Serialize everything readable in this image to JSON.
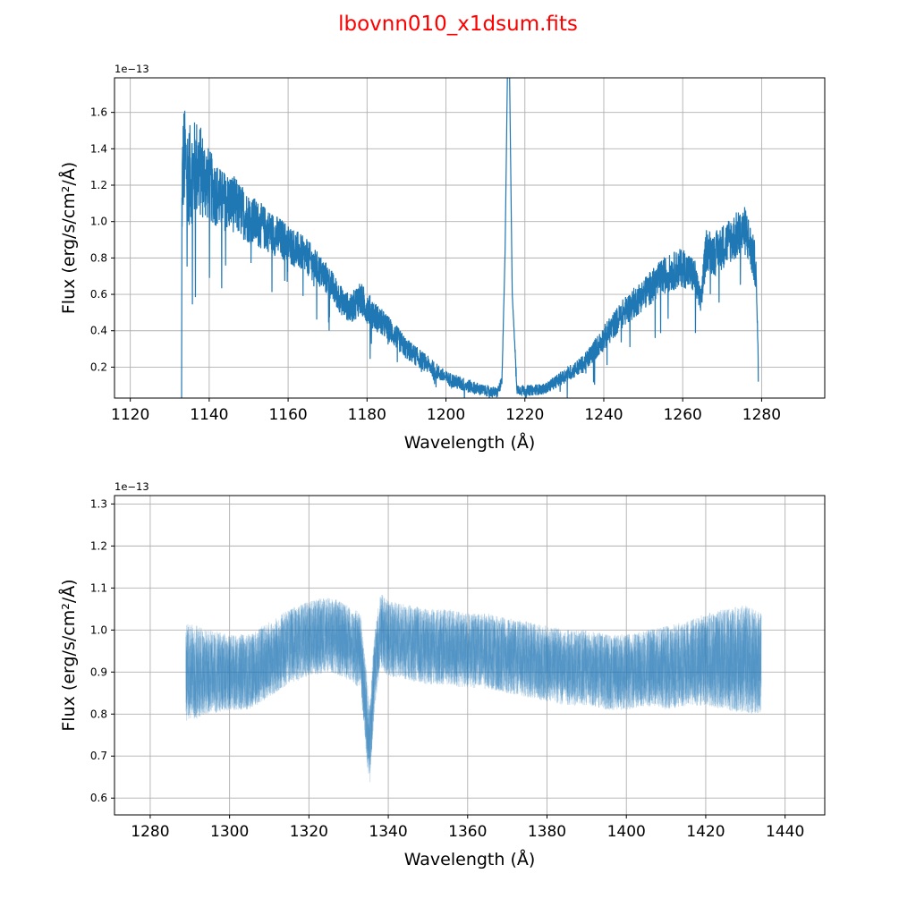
{
  "title": "lbovnn010_x1dsum.fits",
  "colors": {
    "title": "#ff0000",
    "line": "#1f77b4",
    "grid": "#b0b0b0"
  },
  "chart_data": [
    {
      "type": "line",
      "xlabel": "Wavelength (Å)",
      "ylabel": "Flux (erg/s/cm²/Å)",
      "offset_label": "1e−13",
      "xlim": [
        1116,
        1296
      ],
      "ylim": [
        0.03,
        1.79
      ],
      "xticks": [
        1120,
        1140,
        1160,
        1180,
        1200,
        1220,
        1240,
        1260,
        1280
      ],
      "yticks": [
        0.2,
        0.4,
        0.6,
        0.8,
        1.0,
        1.2,
        1.4,
        1.6
      ],
      "ytick_labels": [
        "0.2",
        "0.4",
        "0.6",
        "0.8",
        "1.0",
        "1.2",
        "1.4",
        "1.6"
      ],
      "grid": true,
      "series": [
        {
          "x": [
            1133,
            1133.1,
            1133.5,
            1135,
            1137,
            1140,
            1143,
            1146,
            1150,
            1155,
            1160,
            1165,
            1170,
            1174,
            1176,
            1178,
            1182,
            1186,
            1190,
            1195,
            1200,
            1205,
            1210,
            1213,
            1214.2,
            1215,
            1215.6,
            1216.1,
            1216.8,
            1218,
            1220,
            1225,
            1230,
            1235,
            1240,
            1245,
            1250,
            1255,
            1260,
            1263,
            1264.5,
            1266,
            1268,
            1272,
            1276,
            1278.5,
            1279.1,
            1279.2
          ],
          "values": [
            0.0,
            1.15,
            1.35,
            1.25,
            1.3,
            1.2,
            1.12,
            1.1,
            1.02,
            0.95,
            0.88,
            0.8,
            0.68,
            0.55,
            0.52,
            0.58,
            0.48,
            0.4,
            0.3,
            0.22,
            0.14,
            0.1,
            0.07,
            0.06,
            0.12,
            0.85,
            1.85,
            1.85,
            0.6,
            0.08,
            0.07,
            0.08,
            0.15,
            0.22,
            0.36,
            0.5,
            0.6,
            0.7,
            0.75,
            0.7,
            0.55,
            0.85,
            0.82,
            0.9,
            0.95,
            0.75,
            0.3,
            0.0
          ],
          "noise": [
            0.0,
            0.3,
            0.3,
            0.28,
            0.28,
            0.2,
            0.17,
            0.16,
            0.14,
            0.12,
            0.11,
            0.1,
            0.09,
            0.08,
            0.08,
            0.1,
            0.08,
            0.07,
            0.06,
            0.05,
            0.04,
            0.04,
            0.03,
            0.03,
            0.03,
            0.0,
            0.0,
            0.0,
            0.0,
            0.03,
            0.03,
            0.03,
            0.04,
            0.05,
            0.07,
            0.08,
            0.09,
            0.1,
            0.11,
            0.1,
            0.08,
            0.12,
            0.12,
            0.13,
            0.14,
            0.12,
            0.0,
            0.0
          ]
        }
      ]
    },
    {
      "type": "line",
      "xlabel": "Wavelength (Å)",
      "ylabel": "Flux (erg/s/cm²/Å)",
      "offset_label": "1e−13",
      "xlim": [
        1271,
        1450
      ],
      "ylim": [
        0.56,
        1.32
      ],
      "xticks": [
        1280,
        1300,
        1320,
        1340,
        1360,
        1380,
        1400,
        1420,
        1440
      ],
      "yticks": [
        0.6,
        0.7,
        0.8,
        0.9,
        1.0,
        1.1,
        1.2,
        1.3
      ],
      "ytick_labels": [
        "0.6",
        "0.7",
        "0.8",
        "0.9",
        "1.0",
        "1.1",
        "1.2",
        "1.3"
      ],
      "grid": true,
      "series": [
        {
          "x": [
            1289,
            1295,
            1300,
            1305,
            1310,
            1315,
            1320,
            1325,
            1330,
            1333,
            1334.5,
            1335.3,
            1336.5,
            1338,
            1340,
            1345,
            1350,
            1355,
            1360,
            1365,
            1370,
            1375,
            1380,
            1385,
            1390,
            1395,
            1400,
            1405,
            1410,
            1415,
            1420,
            1425,
            1430,
            1434
          ],
          "values": [
            0.9,
            0.9,
            0.9,
            0.9,
            0.93,
            0.96,
            0.98,
            0.99,
            0.97,
            0.95,
            0.8,
            0.72,
            0.9,
            1.0,
            0.98,
            0.97,
            0.96,
            0.96,
            0.95,
            0.95,
            0.94,
            0.93,
            0.92,
            0.91,
            0.91,
            0.9,
            0.9,
            0.91,
            0.91,
            0.92,
            0.93,
            0.93,
            0.93,
            0.92
          ],
          "noise": [
            0.12,
            0.1,
            0.09,
            0.09,
            0.09,
            0.09,
            0.09,
            0.09,
            0.09,
            0.09,
            0.1,
            0.1,
            0.09,
            0.09,
            0.09,
            0.09,
            0.09,
            0.09,
            0.09,
            0.09,
            0.09,
            0.09,
            0.09,
            0.09,
            0.09,
            0.09,
            0.09,
            0.09,
            0.1,
            0.1,
            0.11,
            0.12,
            0.13,
            0.12
          ]
        }
      ]
    }
  ]
}
